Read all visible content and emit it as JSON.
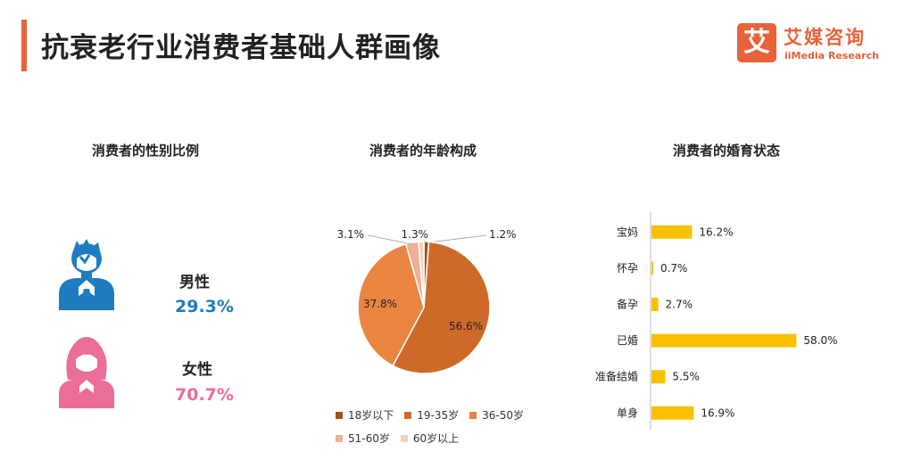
{
  "header": {
    "title": "抗衰老行业消费者基础人群画像",
    "logo_mark": "艾",
    "logo_cn": "艾媒咨询",
    "logo_en": "iiMedia Research"
  },
  "colors": {
    "accent": "#e8623a",
    "male": "#1f7cc1",
    "female": "#ec6d95",
    "bar": "#f9c000"
  },
  "chart_data": [
    {
      "type": "table",
      "title": "消费者的性别比例",
      "rows": [
        {
          "label": "男性",
          "value": 29.3,
          "display": "29.3%",
          "icon": "male-person-icon"
        },
        {
          "label": "女性",
          "value": 70.7,
          "display": "70.7%",
          "icon": "female-person-icon"
        }
      ]
    },
    {
      "type": "pie",
      "title": "消费者的年龄构成",
      "legend_position": "bottom",
      "slices": [
        {
          "name": "18岁以下",
          "value": 1.2,
          "display": "1.2%",
          "color": "#a0521b"
        },
        {
          "name": "19-35岁",
          "value": 56.6,
          "display": "56.6%",
          "color": "#cd6a2a"
        },
        {
          "name": "36-50岁",
          "value": 37.8,
          "display": "37.8%",
          "color": "#ea8540"
        },
        {
          "name": "51-60岁",
          "value": 3.1,
          "display": "3.1%",
          "color": "#efb095"
        },
        {
          "name": "60岁以上",
          "value": 1.3,
          "display": "1.3%",
          "color": "#f6d0c0"
        }
      ]
    },
    {
      "type": "bar",
      "orientation": "horizontal",
      "title": "消费者的婚育状态",
      "categories": [
        "宝妈",
        "怀孕",
        "备孕",
        "已婚",
        "准备结婚",
        "单身"
      ],
      "values": [
        16.2,
        0.7,
        2.7,
        58.0,
        5.5,
        16.9
      ],
      "labels": [
        "16.2%",
        "0.7%",
        "2.7%",
        "58.0%",
        "5.5%",
        "16.9%"
      ],
      "color": "#f9c000",
      "xlim": [
        0,
        60
      ]
    }
  ]
}
